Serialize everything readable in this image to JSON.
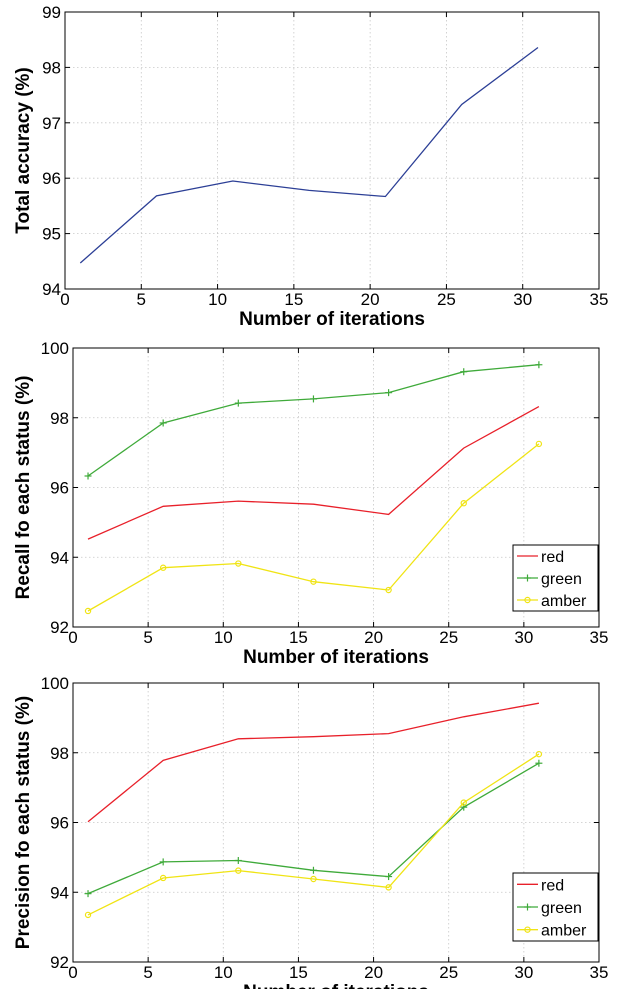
{
  "chart_data": [
    {
      "type": "line",
      "title": "",
      "xlabel": "Number of iterations",
      "ylabel": "Total accuracy (%)",
      "xlim": [
        0,
        35
      ],
      "ylim": [
        94,
        99
      ],
      "xticks": [
        0,
        5,
        10,
        15,
        20,
        25,
        30,
        35
      ],
      "yticks": [
        94,
        95,
        96,
        97,
        98,
        99
      ],
      "grid": true,
      "legend": null,
      "x": [
        1,
        6,
        11,
        16,
        21,
        26,
        31
      ],
      "series": [
        {
          "name": "",
          "color": "#2c3f96",
          "marker": "none",
          "values": [
            94.47,
            95.68,
            95.95,
            95.78,
            95.67,
            97.33,
            98.36
          ]
        }
      ]
    },
    {
      "type": "line",
      "title": "",
      "xlabel": "Number of iterations",
      "ylabel": "Recall fo each status (%)",
      "xlim": [
        0,
        35
      ],
      "ylim": [
        92,
        100
      ],
      "xticks": [
        0,
        5,
        10,
        15,
        20,
        25,
        30,
        35
      ],
      "yticks": [
        92,
        94,
        96,
        98,
        100
      ],
      "grid": true,
      "legend": "bottom-right",
      "x": [
        1,
        6,
        11,
        16,
        21,
        26,
        31
      ],
      "series": [
        {
          "name": "red",
          "color": "#e8202a",
          "marker": "none",
          "values": [
            94.52,
            95.46,
            95.61,
            95.52,
            95.23,
            97.13,
            98.32
          ]
        },
        {
          "name": "green",
          "color": "#3faa3a",
          "marker": "plus",
          "values": [
            96.33,
            97.85,
            98.42,
            98.54,
            98.72,
            99.32,
            99.52
          ]
        },
        {
          "name": "amber",
          "color": "#f0e414",
          "marker": "circle",
          "values": [
            92.46,
            93.7,
            93.82,
            93.3,
            93.06,
            95.55,
            97.25
          ]
        }
      ]
    },
    {
      "type": "line",
      "title": "",
      "xlabel": "Number of iterations",
      "ylabel": "Precision fo each status (%)",
      "xlim": [
        0,
        35
      ],
      "ylim": [
        92,
        100
      ],
      "xticks": [
        0,
        5,
        10,
        15,
        20,
        25,
        30,
        35
      ],
      "yticks": [
        92,
        94,
        96,
        98,
        100
      ],
      "grid": true,
      "legend": "bottom-right",
      "x": [
        1,
        6,
        11,
        16,
        21,
        26,
        31
      ],
      "series": [
        {
          "name": "red",
          "color": "#e8202a",
          "marker": "none",
          "values": [
            96.02,
            97.78,
            98.4,
            98.46,
            98.55,
            99.03,
            99.42
          ]
        },
        {
          "name": "green",
          "color": "#3faa3a",
          "marker": "plus",
          "values": [
            93.96,
            94.87,
            94.91,
            94.63,
            94.45,
            96.44,
            97.7
          ]
        },
        {
          "name": "amber",
          "color": "#f0e414",
          "marker": "circle",
          "values": [
            93.35,
            94.41,
            94.62,
            94.38,
            94.14,
            96.57,
            97.96
          ]
        }
      ]
    }
  ]
}
